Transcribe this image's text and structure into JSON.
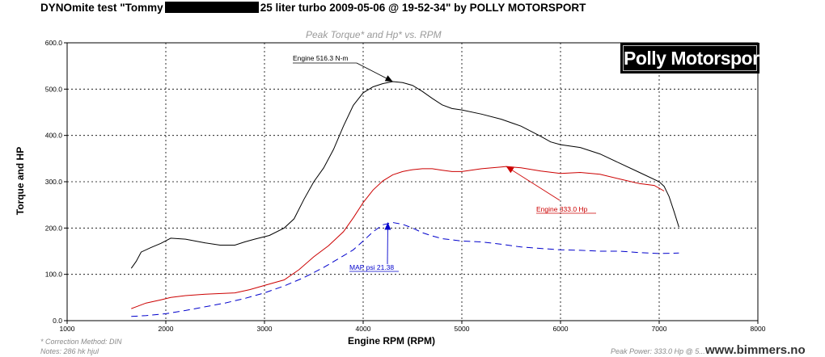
{
  "header": {
    "title_before": "DYNOmite test \"Tommy",
    "title_after": "25 liter turbo 2009-05-06 @ 19-52-34\" by POLLY MOTORSPORT"
  },
  "logo": {
    "text": "Polly Motorsport"
  },
  "footer": {
    "correction": "* Correction Method: DIN",
    "notes": "Notes: 286 hk hjul",
    "peak": "Peak Power: 333.0 Hp @ 5...",
    "watermark": "www.bimmers.no"
  },
  "chart_data": {
    "type": "line",
    "title": "Peak Torque* and Hp* vs. RPM",
    "xlabel": "Engine RPM (RPM)",
    "ylabel": "Torque and HP",
    "xlim": [
      1000,
      8000
    ],
    "ylim": [
      0,
      600
    ],
    "xticks": [
      1000,
      2000,
      3000,
      4000,
      5000,
      6000,
      7000,
      8000
    ],
    "yticks": [
      0,
      100,
      200,
      300,
      400,
      500,
      600
    ],
    "ytick_labels": [
      "0.0",
      "100.0",
      "200.0",
      "300.0",
      "400.0",
      "500.0",
      "600.0"
    ],
    "grid": true,
    "series": [
      {
        "name": "Engine 516.3 N-m",
        "color": "#000000",
        "style": "solid",
        "points": [
          [
            1650,
            113
          ],
          [
            1700,
            128
          ],
          [
            1750,
            148
          ],
          [
            1850,
            158
          ],
          [
            1950,
            167
          ],
          [
            2050,
            178
          ],
          [
            2200,
            176
          ],
          [
            2400,
            168
          ],
          [
            2550,
            163
          ],
          [
            2700,
            163
          ],
          [
            2800,
            170
          ],
          [
            2900,
            176
          ],
          [
            3050,
            184
          ],
          [
            3200,
            200
          ],
          [
            3300,
            220
          ],
          [
            3400,
            262
          ],
          [
            3500,
            300
          ],
          [
            3600,
            330
          ],
          [
            3700,
            370
          ],
          [
            3800,
            420
          ],
          [
            3900,
            465
          ],
          [
            4000,
            492
          ],
          [
            4100,
            505
          ],
          [
            4200,
            512
          ],
          [
            4300,
            516.3
          ],
          [
            4400,
            514
          ],
          [
            4500,
            508
          ],
          [
            4600,
            495
          ],
          [
            4700,
            480
          ],
          [
            4800,
            466
          ],
          [
            4900,
            458
          ],
          [
            5000,
            455
          ],
          [
            5200,
            446
          ],
          [
            5400,
            435
          ],
          [
            5600,
            420
          ],
          [
            5800,
            398
          ],
          [
            5900,
            386
          ],
          [
            6000,
            380
          ],
          [
            6200,
            374
          ],
          [
            6400,
            360
          ],
          [
            6600,
            340
          ],
          [
            6800,
            320
          ],
          [
            7000,
            300
          ],
          [
            7050,
            290
          ],
          [
            7100,
            268
          ],
          [
            7150,
            236
          ],
          [
            7200,
            202
          ]
        ]
      },
      {
        "name": "Engine 333.0 Hp",
        "color": "#cc0000",
        "style": "solid",
        "points": [
          [
            1650,
            26
          ],
          [
            1700,
            30
          ],
          [
            1800,
            38
          ],
          [
            1950,
            45
          ],
          [
            2050,
            50
          ],
          [
            2200,
            54
          ],
          [
            2400,
            57
          ],
          [
            2700,
            60
          ],
          [
            2850,
            67
          ],
          [
            3000,
            76
          ],
          [
            3200,
            88
          ],
          [
            3350,
            110
          ],
          [
            3500,
            138
          ],
          [
            3650,
            162
          ],
          [
            3800,
            192
          ],
          [
            3900,
            222
          ],
          [
            4000,
            255
          ],
          [
            4100,
            282
          ],
          [
            4200,
            302
          ],
          [
            4300,
            315
          ],
          [
            4400,
            322
          ],
          [
            4500,
            326
          ],
          [
            4600,
            328
          ],
          [
            4700,
            328
          ],
          [
            4800,
            325
          ],
          [
            4900,
            322
          ],
          [
            5000,
            322
          ],
          [
            5200,
            328
          ],
          [
            5400,
            332
          ],
          [
            5450,
            333
          ],
          [
            5600,
            330
          ],
          [
            5800,
            323
          ],
          [
            6000,
            318
          ],
          [
            6200,
            320
          ],
          [
            6400,
            316
          ],
          [
            6600,
            306
          ],
          [
            6800,
            296
          ],
          [
            6950,
            292
          ],
          [
            7050,
            280
          ]
        ]
      },
      {
        "name": "MAP psi 21.38",
        "color": "#0000cc",
        "style": "dashed",
        "points": [
          [
            1650,
            9
          ],
          [
            1800,
            11
          ],
          [
            2000,
            15
          ],
          [
            2200,
            22
          ],
          [
            2400,
            30
          ],
          [
            2600,
            38
          ],
          [
            2800,
            48
          ],
          [
            3000,
            60
          ],
          [
            3200,
            75
          ],
          [
            3400,
            93
          ],
          [
            3600,
            115
          ],
          [
            3800,
            140
          ],
          [
            3900,
            153
          ],
          [
            4000,
            172
          ],
          [
            4100,
            192
          ],
          [
            4200,
            207
          ],
          [
            4300,
            212
          ],
          [
            4400,
            208
          ],
          [
            4500,
            200
          ],
          [
            4600,
            190
          ],
          [
            4700,
            183
          ],
          [
            4800,
            177
          ],
          [
            5000,
            172
          ],
          [
            5200,
            170
          ],
          [
            5400,
            165
          ],
          [
            5600,
            159
          ],
          [
            5800,
            156
          ],
          [
            6000,
            153
          ],
          [
            6200,
            152
          ],
          [
            6400,
            150
          ],
          [
            6600,
            150
          ],
          [
            6800,
            147
          ],
          [
            7000,
            145
          ],
          [
            7200,
            146
          ]
        ]
      }
    ],
    "annotations": [
      {
        "label": "Engine 516.3 N-m",
        "color": "#000000",
        "target": [
          4300,
          516.3
        ]
      },
      {
        "label": "Engine 333.0 Hp",
        "color": "#cc0000",
        "target": [
          5450,
          333
        ]
      },
      {
        "label": "MAP psi 21.38",
        "color": "#0000cc",
        "target": [
          4250,
          212
        ]
      }
    ]
  }
}
